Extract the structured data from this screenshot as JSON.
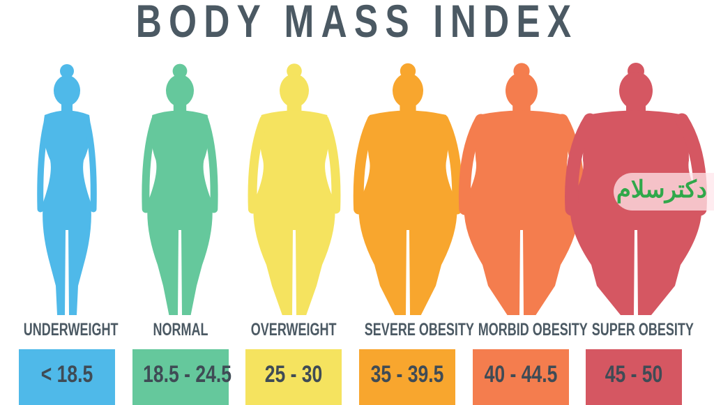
{
  "title": "BODY MASS INDEX",
  "categories": [
    {
      "label": "UNDERWEIGHT",
      "range": "< 18.5",
      "color": "#4fb9e9"
    },
    {
      "label": "NORMAL",
      "range": "18.5 - 24.5",
      "color": "#65c89c"
    },
    {
      "label": "OVERWEIGHT",
      "range": "25 - 30",
      "color": "#f5e35f"
    },
    {
      "label": "SEVERE OBESITY",
      "range": "35 - 39.5",
      "color": "#f8a62e"
    },
    {
      "label": "MORBID OBESITY",
      "range": "40 - 44.5",
      "color": "#f47d4e"
    },
    {
      "label": "SUPER OBESITY",
      "range": "45 - 50",
      "color": "#d55762"
    }
  ],
  "watermark": "دکترسلام"
}
